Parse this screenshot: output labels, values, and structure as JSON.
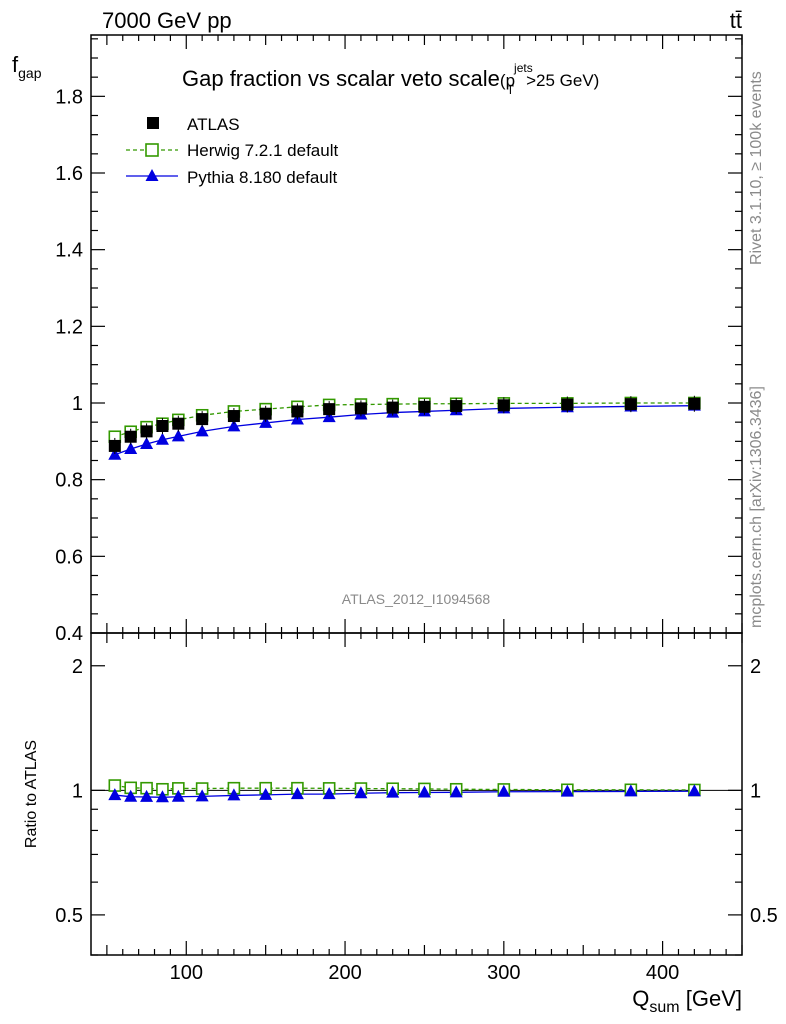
{
  "header": {
    "left": "7000 GeV pp",
    "right": "tt̄"
  },
  "side_labels": {
    "rivet": "Rivet 3.1.10, ≥ 100k events",
    "mcplots": "mcplots.cern.ch [arXiv:1306.3436]"
  },
  "watermark": "ATLAS_2012_I1094568",
  "colors": {
    "atlas": "#000000",
    "herwig": "#339900",
    "pythia": "#0000e0",
    "axis": "#000000",
    "grey_text": "#8a8a8a"
  },
  "chart_data": [
    {
      "type": "scatter",
      "panel": "main",
      "title_main": "Gap fraction vs scalar veto scale",
      "title_cut": {
        "open": "(p",
        "sub": "T",
        "sup": "jets",
        "rest": ">25 GeV)"
      },
      "ylabel": {
        "base": "f",
        "sub": "gap"
      },
      "xlim": [
        40,
        450
      ],
      "ylim": [
        0.4,
        1.96
      ],
      "yticks": [
        0.4,
        0.6,
        0.8,
        1.0,
        1.2,
        1.4,
        1.6,
        1.8
      ],
      "ytick_labels": [
        "0.4",
        "0.6",
        "0.8",
        "1",
        "1.2",
        "1.4",
        "1.6",
        "1.8"
      ],
      "legend_placement": "top-left",
      "series": [
        {
          "name": "ATLAS",
          "marker": "filled-square",
          "x": [
            55,
            65,
            75,
            85,
            95,
            110,
            130,
            150,
            170,
            190,
            210,
            230,
            250,
            270,
            300,
            340,
            380,
            420
          ],
          "values": [
            0.888,
            0.912,
            0.926,
            0.94,
            0.946,
            0.958,
            0.966,
            0.972,
            0.978,
            0.984,
            0.986,
            0.988,
            0.99,
            0.992,
            0.994,
            0.996,
            0.997,
            0.998
          ]
        },
        {
          "name": "Herwig 7.2.1 default",
          "marker": "open-square",
          "line": "dashed",
          "x": [
            55,
            65,
            75,
            85,
            95,
            110,
            130,
            150,
            170,
            190,
            210,
            230,
            250,
            270,
            300,
            340,
            380,
            420
          ],
          "values": [
            0.912,
            0.925,
            0.937,
            0.946,
            0.956,
            0.968,
            0.978,
            0.984,
            0.99,
            0.995,
            0.996,
            0.997,
            0.998,
            0.998,
            0.999,
            0.999,
            1.0,
            1.0
          ]
        },
        {
          "name": "Pythia 8.180 default",
          "marker": "filled-triangle",
          "line": "solid",
          "x": [
            55,
            65,
            75,
            85,
            95,
            110,
            130,
            150,
            170,
            190,
            210,
            230,
            250,
            270,
            300,
            340,
            380,
            420
          ],
          "values": [
            0.865,
            0.88,
            0.893,
            0.904,
            0.913,
            0.926,
            0.939,
            0.948,
            0.957,
            0.963,
            0.97,
            0.975,
            0.978,
            0.981,
            0.986,
            0.989,
            0.991,
            0.993
          ]
        }
      ]
    },
    {
      "type": "scatter",
      "panel": "ratio",
      "ylabel": "Ratio to ATLAS",
      "xlabel": {
        "base": "Q",
        "sub": "sum",
        "unit": " [GeV]"
      },
      "xlim": [
        40,
        450
      ],
      "xticks": [
        100,
        200,
        300,
        400
      ],
      "xtick_labels": [
        "100",
        "200",
        "300",
        "400"
      ],
      "ylim": [
        0.4,
        2.4
      ],
      "log_y": true,
      "yticks": [
        0.5,
        1,
        2
      ],
      "ytick_labels": [
        "0.5",
        "1",
        "2"
      ],
      "series": [
        {
          "name": "Herwig 7.2.1 default",
          "x": [
            55,
            65,
            75,
            85,
            95,
            110,
            130,
            150,
            170,
            190,
            210,
            230,
            250,
            270,
            300,
            340,
            380,
            420
          ],
          "values": [
            1.027,
            1.014,
            1.012,
            1.006,
            1.011,
            1.01,
            1.012,
            1.012,
            1.012,
            1.011,
            1.01,
            1.009,
            1.008,
            1.006,
            1.005,
            1.003,
            1.003,
            1.002
          ]
        },
        {
          "name": "Pythia 8.180 default",
          "x": [
            55,
            65,
            75,
            85,
            95,
            110,
            130,
            150,
            170,
            190,
            210,
            230,
            250,
            270,
            300,
            340,
            380,
            420
          ],
          "values": [
            0.974,
            0.965,
            0.964,
            0.962,
            0.965,
            0.967,
            0.972,
            0.975,
            0.979,
            0.979,
            0.984,
            0.987,
            0.988,
            0.989,
            0.992,
            0.993,
            0.994,
            0.995
          ]
        }
      ]
    }
  ]
}
